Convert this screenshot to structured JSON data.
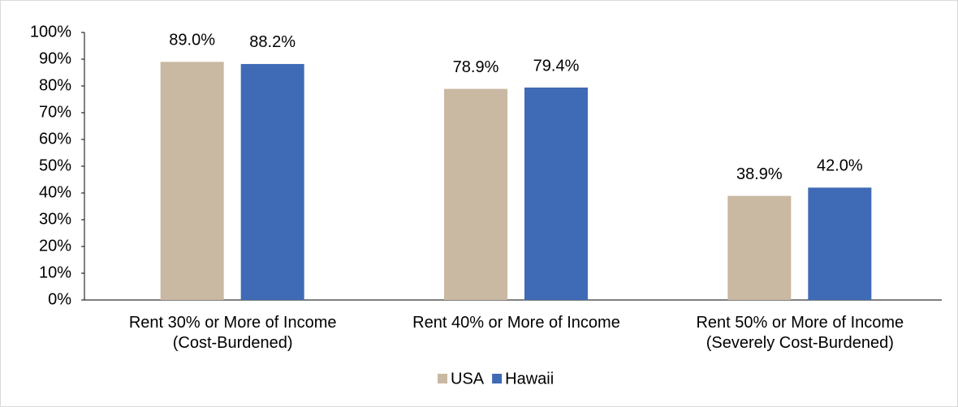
{
  "chart_data": {
    "type": "bar",
    "categories": [
      "Rent 30% or More of Income\n(Cost-Burdened)",
      "Rent 40% or More of Income",
      "Rent 50% or More of Income\n(Severely Cost-Burdened)"
    ],
    "series": [
      {
        "name": "USA",
        "color": "#c9b8a2",
        "values": [
          89.0,
          78.9,
          38.9
        ],
        "value_labels": [
          "89.0%",
          "78.9%",
          "38.9%"
        ]
      },
      {
        "name": "Hawaii",
        "color": "#3f6ab5",
        "values": [
          88.2,
          79.4,
          42.0
        ],
        "value_labels": [
          "88.2%",
          "79.4%",
          "42.0%"
        ]
      }
    ],
    "ylim": [
      0,
      100
    ],
    "yticks": [
      {
        "value": 0,
        "label": "0%"
      },
      {
        "value": 10,
        "label": "10%"
      },
      {
        "value": 20,
        "label": "20%"
      },
      {
        "value": 30,
        "label": "30%"
      },
      {
        "value": 40,
        "label": "40%"
      },
      {
        "value": 50,
        "label": "50%"
      },
      {
        "value": 60,
        "label": "60%"
      },
      {
        "value": 70,
        "label": "70%"
      },
      {
        "value": 80,
        "label": "80%"
      },
      {
        "value": 90,
        "label": "90%"
      },
      {
        "value": 100,
        "label": "100%"
      }
    ],
    "grid": false,
    "legend": "bottom"
  }
}
